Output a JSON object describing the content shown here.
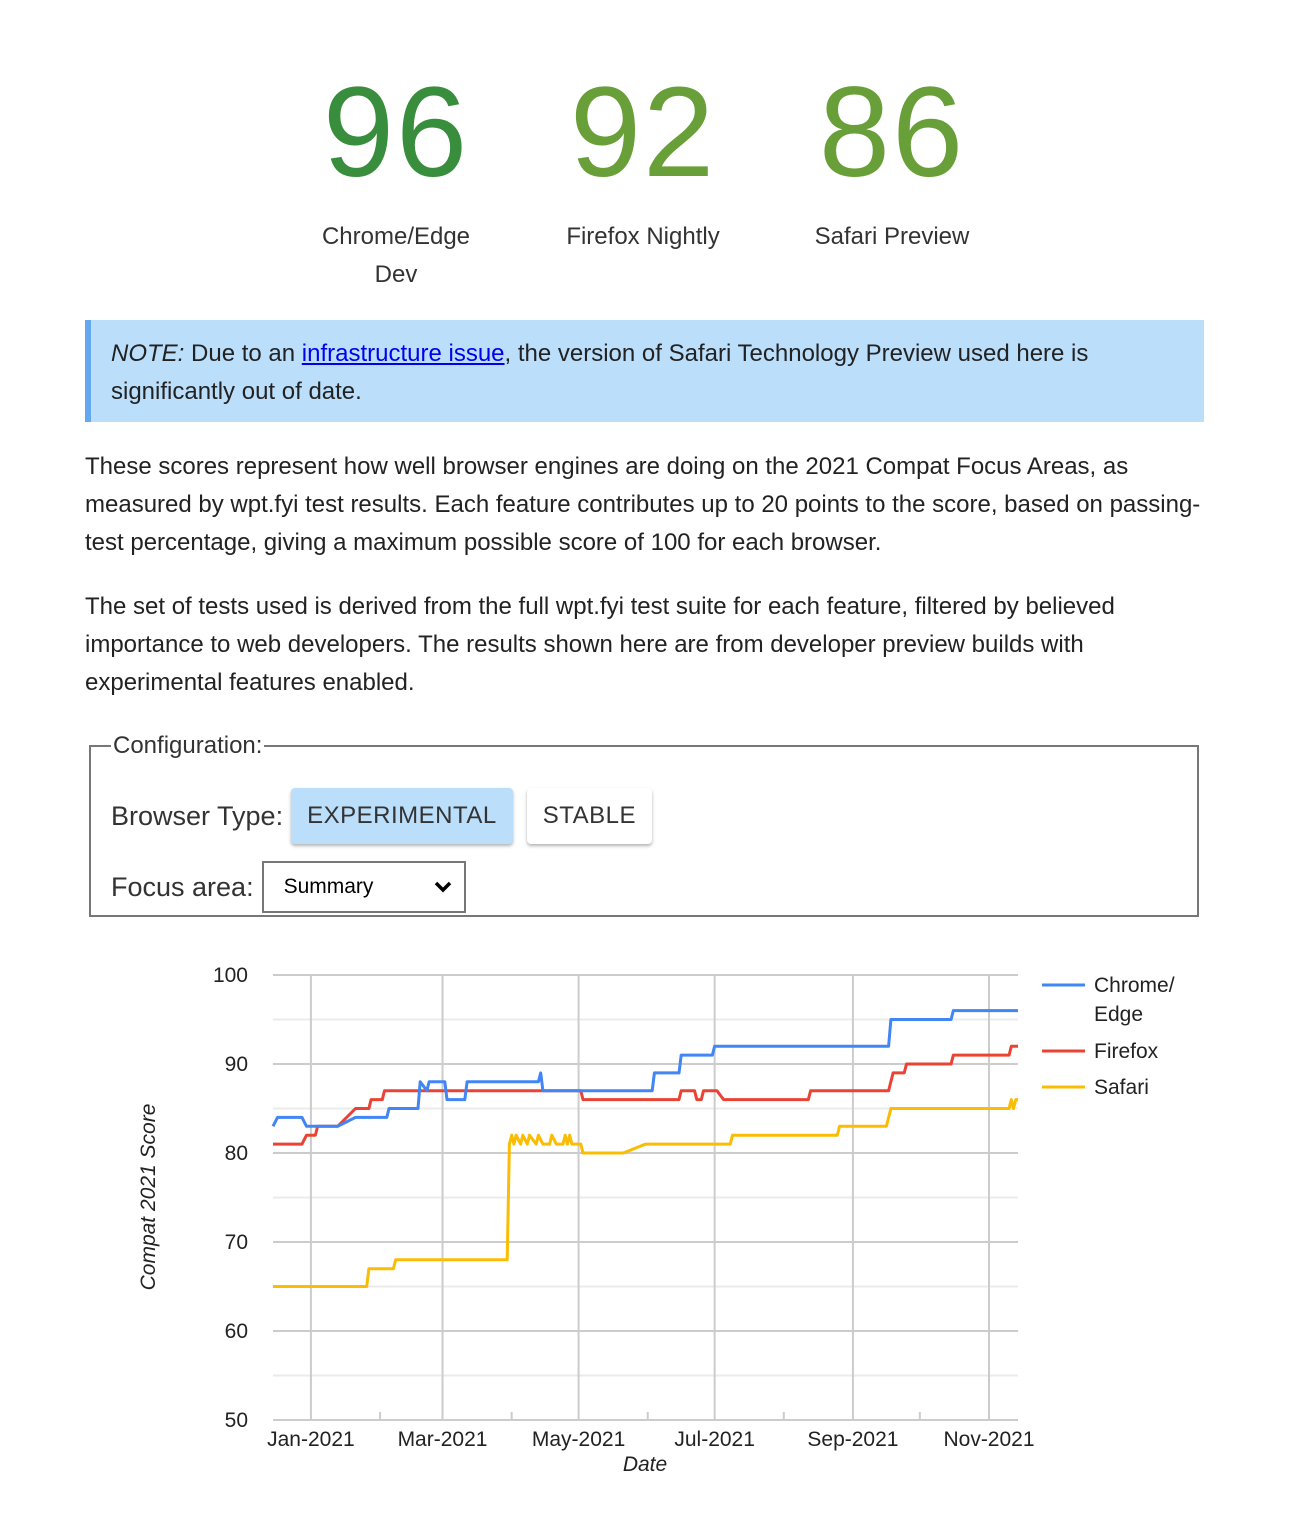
{
  "scores": [
    {
      "value": "96",
      "label": "Chrome/Edge Dev",
      "color": "#388e3c"
    },
    {
      "value": "92",
      "label": "Firefox Nightly",
      "color": "#689f38"
    },
    {
      "value": "86",
      "label": "Safari Preview",
      "color": "#689f38"
    }
  ],
  "note": {
    "prefix": "NOTE:",
    "text_before": " Due to an ",
    "link": "infrastructure issue",
    "text_after": ", the version of Safari Technology Preview used here is significantly out of date."
  },
  "paragraphs": [
    "These scores represent how well browser engines are doing on the 2021 Compat Focus Areas, as measured by wpt.fyi test results. Each feature contributes up to 20 points to the score, based on passing-test percentage, giving a maximum possible score of 100 for each browser.",
    "The set of tests used is derived from the full wpt.fyi test suite for each feature, filtered by believed importance to web developers. The results shown here are from developer preview builds with experimental features enabled."
  ],
  "config": {
    "legend": "Configuration:",
    "browser_type_label": "Browser Type:",
    "buttons": [
      {
        "label": "EXPERIMENTAL",
        "selected": true
      },
      {
        "label": "STABLE",
        "selected": false
      }
    ],
    "focus_area_label": "Focus area:",
    "focus_area_value": "Summary"
  },
  "chart_data": {
    "type": "line",
    "xlabel": "Date",
    "ylabel": "Compat 2021 Score",
    "ylim": [
      50,
      100
    ],
    "xlim": [
      "2020-12-15",
      "2021-11-14"
    ],
    "y_ticks": [
      "50",
      "60",
      "70",
      "80",
      "90",
      "100"
    ],
    "x_ticks": [
      {
        "date": "2021-01-01",
        "label": "Jan-2021"
      },
      {
        "date": "2021-03-01",
        "label": "Mar-2021"
      },
      {
        "date": "2021-05-01",
        "label": "May-2021"
      },
      {
        "date": "2021-07-01",
        "label": "Jul-2021"
      },
      {
        "date": "2021-09-01",
        "label": "Sep-2021"
      },
      {
        "date": "2021-11-01",
        "label": "Nov-2021"
      }
    ],
    "grid": true,
    "legend_position": "right",
    "series": [
      {
        "name": "Chrome/ Edge",
        "legend_lines": [
          "Chrome/",
          "Edge"
        ],
        "color": "#4285f4",
        "points": [
          [
            "2020-12-15",
            83
          ],
          [
            "2020-12-17",
            84
          ],
          [
            "2020-12-28",
            84
          ],
          [
            "2020-12-30",
            83
          ],
          [
            "2021-01-13",
            83
          ],
          [
            "2021-01-21",
            84
          ],
          [
            "2021-02-04",
            84
          ],
          [
            "2021-02-05",
            85
          ],
          [
            "2021-02-18",
            85
          ],
          [
            "2021-02-19",
            88
          ],
          [
            "2021-02-22",
            87
          ],
          [
            "2021-02-23",
            88
          ],
          [
            "2021-03-02",
            88
          ],
          [
            "2021-03-03",
            86
          ],
          [
            "2021-03-11",
            86
          ],
          [
            "2021-03-12",
            88
          ],
          [
            "2021-04-13",
            88
          ],
          [
            "2021-04-14",
            89
          ],
          [
            "2021-04-15",
            87
          ],
          [
            "2021-06-03",
            87
          ],
          [
            "2021-06-04",
            89
          ],
          [
            "2021-06-15",
            89
          ],
          [
            "2021-06-16",
            91
          ],
          [
            "2021-06-30",
            91
          ],
          [
            "2021-07-01",
            92
          ],
          [
            "2021-09-17",
            92
          ],
          [
            "2021-09-18",
            95
          ],
          [
            "2021-10-15",
            95
          ],
          [
            "2021-10-16",
            96
          ],
          [
            "2021-11-14",
            96
          ]
        ]
      },
      {
        "name": "Firefox",
        "legend_lines": [
          "Firefox"
        ],
        "color": "#ea4335",
        "points": [
          [
            "2020-12-15",
            81
          ],
          [
            "2020-12-28",
            81
          ],
          [
            "2020-12-30",
            82
          ],
          [
            "2021-01-03",
            82
          ],
          [
            "2021-01-04",
            83
          ],
          [
            "2021-01-13",
            83
          ],
          [
            "2021-01-21",
            85
          ],
          [
            "2021-01-27",
            85
          ],
          [
            "2021-01-28",
            86
          ],
          [
            "2021-02-02",
            86
          ],
          [
            "2021-02-03",
            87
          ],
          [
            "2021-05-02",
            87
          ],
          [
            "2021-05-03",
            86
          ],
          [
            "2021-06-15",
            86
          ],
          [
            "2021-06-16",
            87
          ],
          [
            "2021-06-22",
            87
          ],
          [
            "2021-06-23",
            86
          ],
          [
            "2021-06-25",
            86
          ],
          [
            "2021-06-26",
            87
          ],
          [
            "2021-07-02",
            87
          ],
          [
            "2021-07-05",
            86
          ],
          [
            "2021-08-12",
            86
          ],
          [
            "2021-08-13",
            87
          ],
          [
            "2021-09-17",
            87
          ],
          [
            "2021-09-19",
            89
          ],
          [
            "2021-09-24",
            89
          ],
          [
            "2021-09-25",
            90
          ],
          [
            "2021-10-15",
            90
          ],
          [
            "2021-10-16",
            91
          ],
          [
            "2021-11-10",
            91
          ],
          [
            "2021-11-11",
            92
          ],
          [
            "2021-11-14",
            92
          ]
        ]
      },
      {
        "name": "Safari",
        "legend_lines": [
          "Safari"
        ],
        "color": "#fbbc04",
        "points": [
          [
            "2020-12-15",
            65
          ],
          [
            "2021-01-26",
            65
          ],
          [
            "2021-01-27",
            67
          ],
          [
            "2021-02-07",
            67
          ],
          [
            "2021-02-08",
            68
          ],
          [
            "2021-03-30",
            68
          ],
          [
            "2021-03-31",
            81
          ],
          [
            "2021-04-01",
            82
          ],
          [
            "2021-04-02",
            81
          ],
          [
            "2021-04-03",
            82
          ],
          [
            "2021-04-05",
            81
          ],
          [
            "2021-04-06",
            82
          ],
          [
            "2021-04-08",
            81
          ],
          [
            "2021-04-09",
            82
          ],
          [
            "2021-04-12",
            81
          ],
          [
            "2021-04-13",
            82
          ],
          [
            "2021-04-15",
            81
          ],
          [
            "2021-04-18",
            81
          ],
          [
            "2021-04-19",
            82
          ],
          [
            "2021-04-21",
            81
          ],
          [
            "2021-04-24",
            81
          ],
          [
            "2021-04-25",
            82
          ],
          [
            "2021-04-26",
            81
          ],
          [
            "2021-04-27",
            82
          ],
          [
            "2021-04-28",
            81
          ],
          [
            "2021-05-02",
            81
          ],
          [
            "2021-05-03",
            80
          ],
          [
            "2021-05-21",
            80
          ],
          [
            "2021-05-31",
            81
          ],
          [
            "2021-07-08",
            81
          ],
          [
            "2021-07-09",
            82
          ],
          [
            "2021-08-25",
            82
          ],
          [
            "2021-08-26",
            83
          ],
          [
            "2021-09-16",
            83
          ],
          [
            "2021-09-18",
            85
          ],
          [
            "2021-11-10",
            85
          ],
          [
            "2021-11-11",
            86
          ],
          [
            "2021-11-12",
            85
          ],
          [
            "2021-11-13",
            86
          ],
          [
            "2021-11-14",
            86
          ]
        ]
      }
    ]
  }
}
